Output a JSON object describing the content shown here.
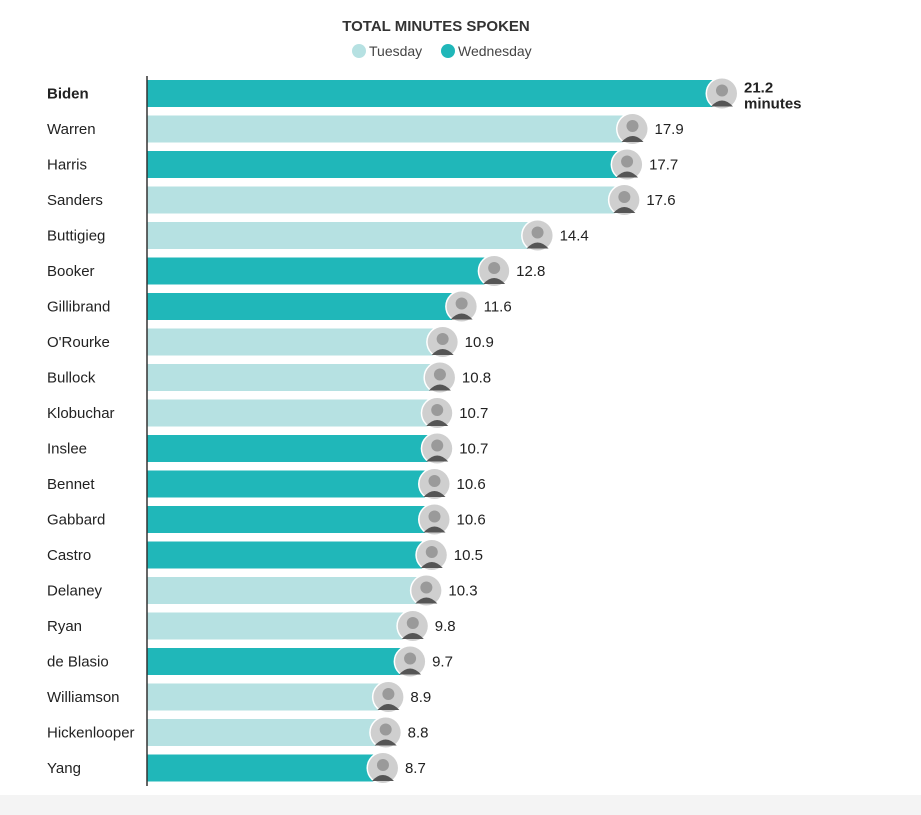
{
  "chart_data": {
    "type": "bar",
    "orientation": "horizontal",
    "title": "TOTAL MINUTES SPOKEN",
    "legend": [
      {
        "name": "Tuesday",
        "color": "#b6e1e2"
      },
      {
        "name": "Wednesday",
        "color": "#20b7b9"
      }
    ],
    "legend_placement": "top-center",
    "xlim": [
      0,
      21.2
    ],
    "unit_label": "minutes",
    "bars": [
      {
        "name": "Biden",
        "value": 21.2,
        "label": "21.2",
        "night": "Wednesday",
        "highlight": true
      },
      {
        "name": "Warren",
        "value": 17.9,
        "label": "17.9",
        "night": "Tuesday"
      },
      {
        "name": "Harris",
        "value": 17.7,
        "label": "17.7",
        "night": "Wednesday"
      },
      {
        "name": "Sanders",
        "value": 17.6,
        "label": "17.6",
        "night": "Tuesday"
      },
      {
        "name": "Buttigieg",
        "value": 14.4,
        "label": "14.4",
        "night": "Tuesday"
      },
      {
        "name": "Booker",
        "value": 12.8,
        "label": "12.8",
        "night": "Wednesday"
      },
      {
        "name": "Gillibrand",
        "value": 11.6,
        "label": "11.6",
        "night": "Wednesday"
      },
      {
        "name": "O'Rourke",
        "value": 10.9,
        "label": "10.9",
        "night": "Tuesday"
      },
      {
        "name": "Bullock",
        "value": 10.8,
        "label": "10.8",
        "night": "Tuesday"
      },
      {
        "name": "Klobuchar",
        "value": 10.7,
        "label": "10.7",
        "night": "Tuesday"
      },
      {
        "name": "Inslee",
        "value": 10.7,
        "label": "10.7",
        "night": "Wednesday"
      },
      {
        "name": "Bennet",
        "value": 10.6,
        "label": "10.6",
        "night": "Wednesday"
      },
      {
        "name": "Gabbard",
        "value": 10.6,
        "label": "10.6",
        "night": "Wednesday"
      },
      {
        "name": "Castro",
        "value": 10.5,
        "label": "10.5",
        "night": "Wednesday"
      },
      {
        "name": "Delaney",
        "value": 10.3,
        "label": "10.3",
        "night": "Tuesday"
      },
      {
        "name": "Ryan",
        "value": 9.8,
        "label": "9.8",
        "night": "Tuesday"
      },
      {
        "name": "de Blasio",
        "value": 9.7,
        "label": "9.7",
        "night": "Wednesday"
      },
      {
        "name": "Williamson",
        "value": 8.9,
        "label": "8.9",
        "night": "Tuesday"
      },
      {
        "name": "Hickenlooper",
        "value": 8.8,
        "label": "8.8",
        "night": "Tuesday"
      },
      {
        "name": "Yang",
        "value": 8.7,
        "label": "8.7",
        "night": "Wednesday"
      }
    ]
  },
  "colors": {
    "axis": "#333333",
    "text": "#222222",
    "photo_ring": "#ffffff",
    "photo_fill": "#cfcfcf",
    "photo_shadow": "#9a9a9a"
  }
}
